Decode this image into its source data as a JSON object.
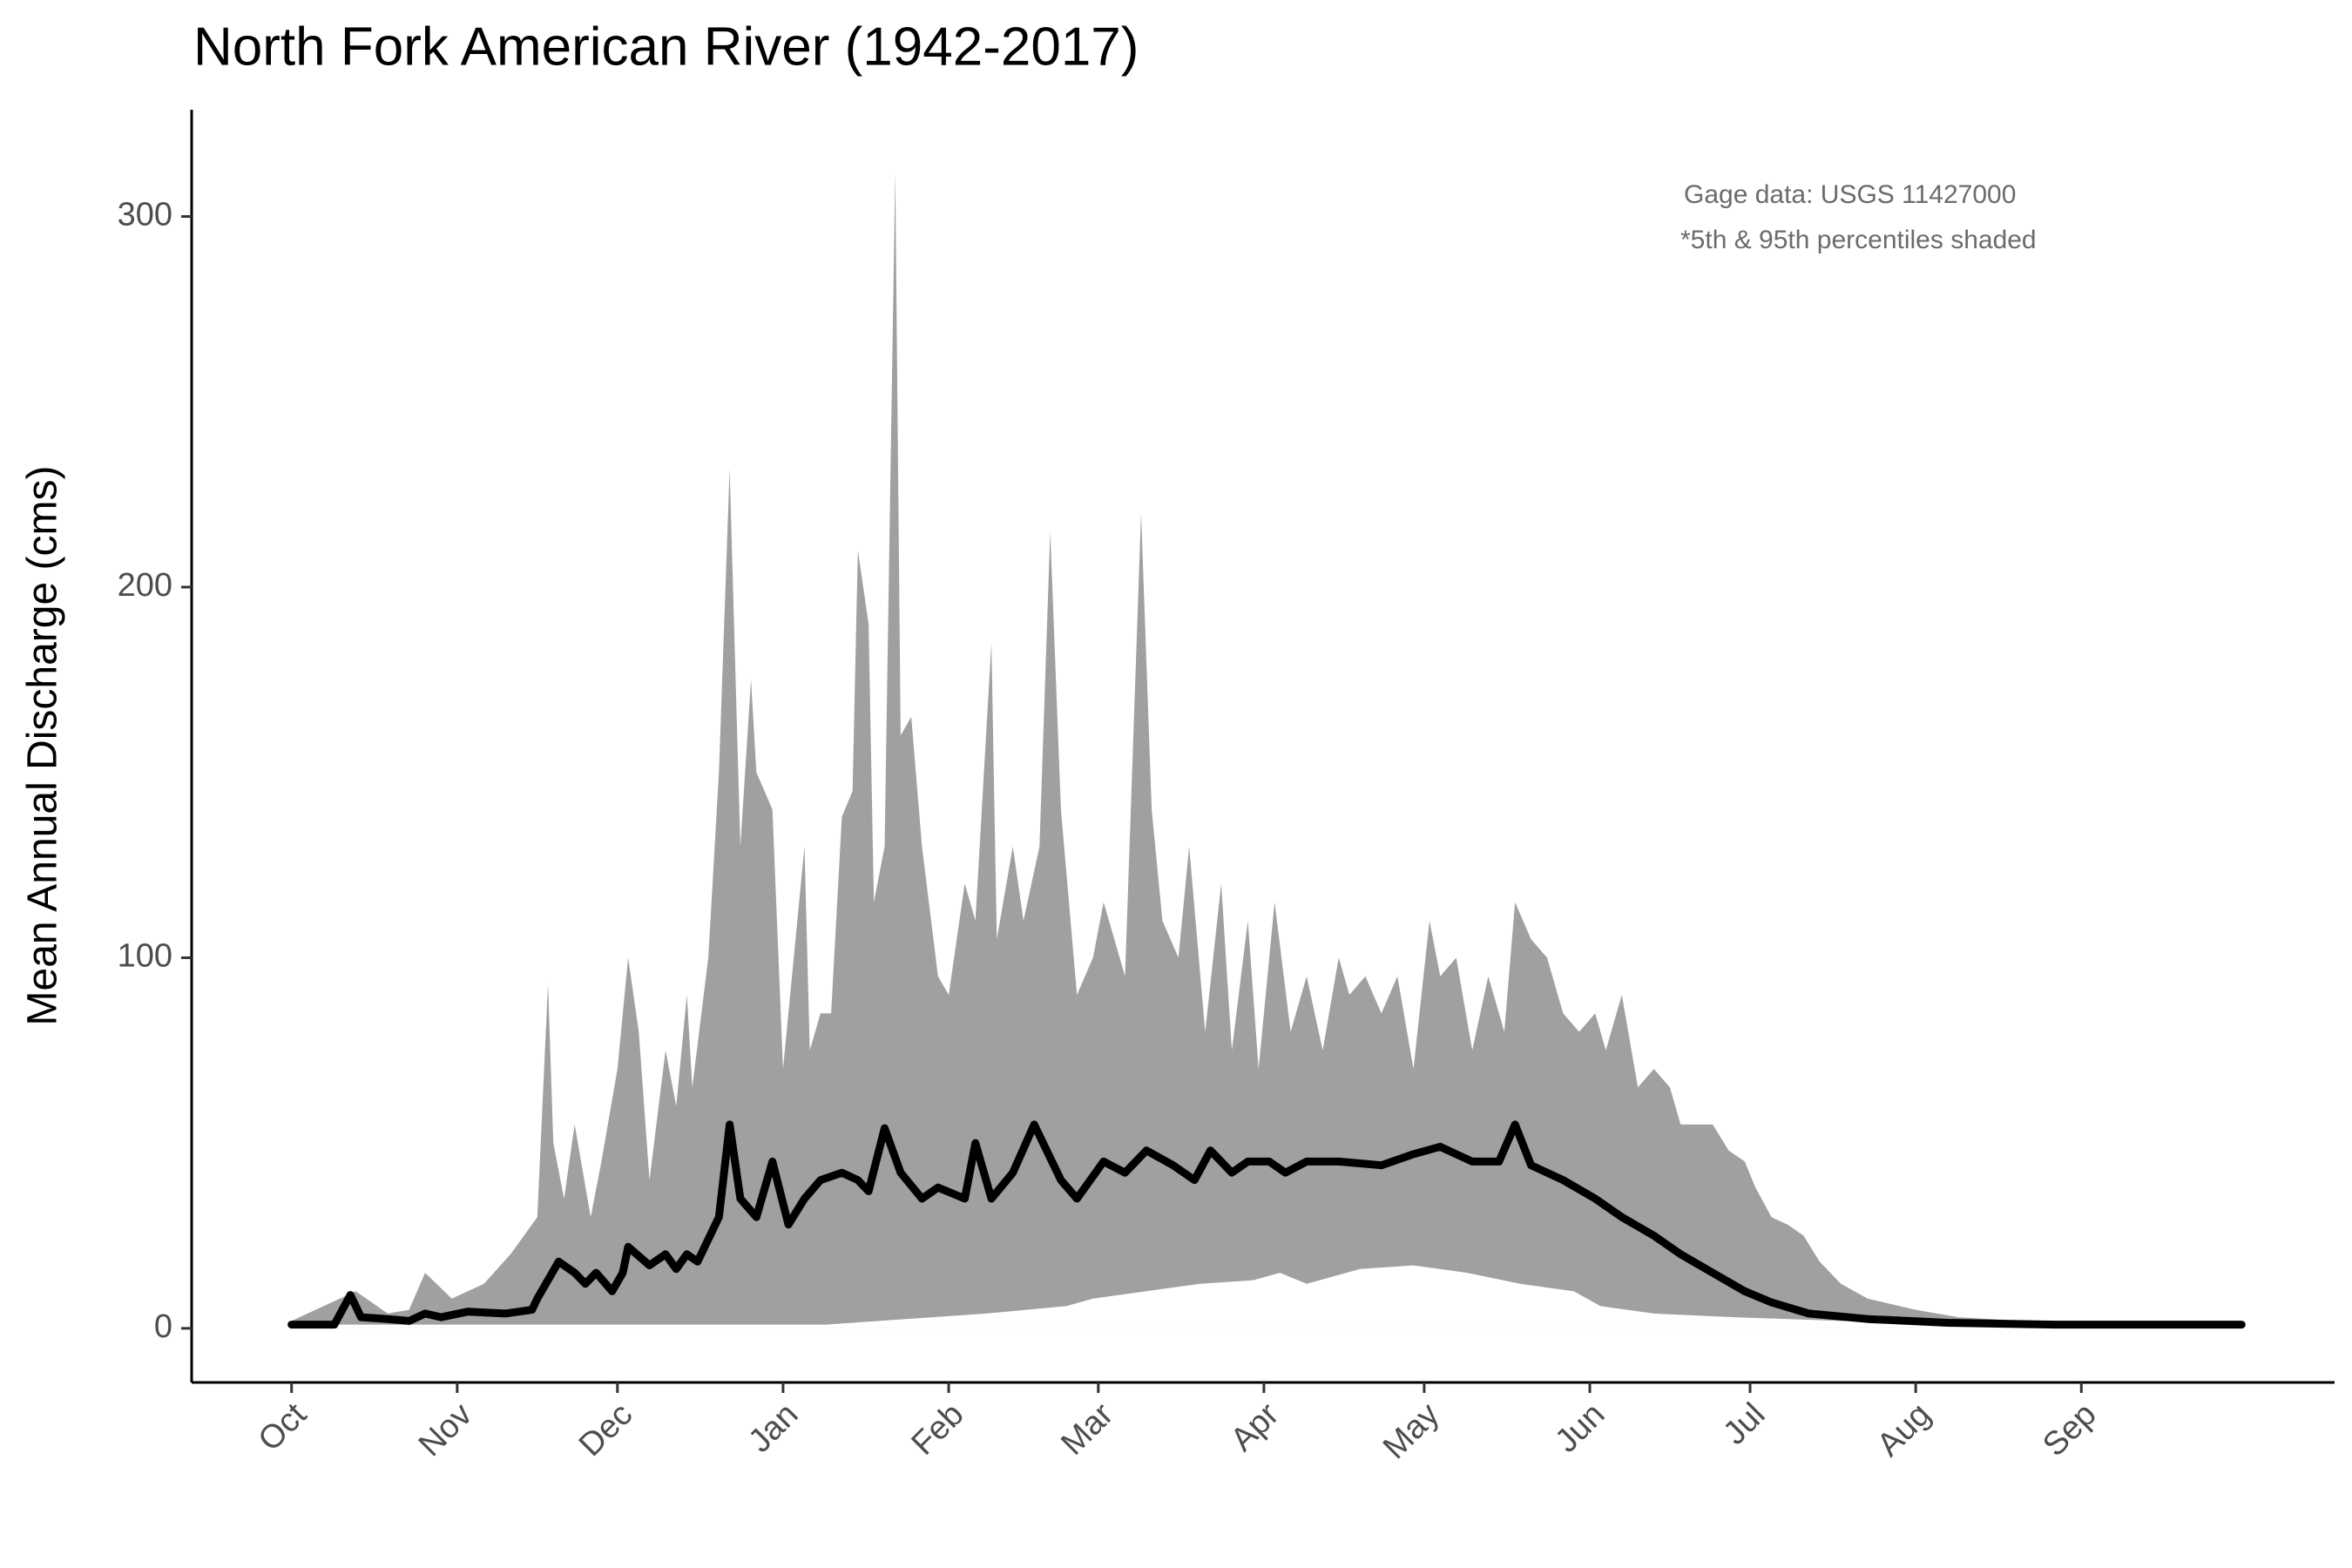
{
  "chart_data": {
    "type": "area-line",
    "title": "North Fork American River (1942-2017)",
    "y_label": "Mean Annual Discharge (cms)",
    "annotations": [
      "Gage data: USGS 11427000",
      "*5th & 95th percentiles shaded"
    ],
    "xlim": [
      -18.7,
      382.4
    ],
    "ylim": [
      -14.6,
      328.8
    ],
    "xticks": [
      {
        "value": 0,
        "label": "Oct"
      },
      {
        "value": 31,
        "label": "Nov"
      },
      {
        "value": 61,
        "label": "Dec"
      },
      {
        "value": 92,
        "label": "Jan"
      },
      {
        "value": 123,
        "label": "Feb"
      },
      {
        "value": 151,
        "label": "Mar"
      },
      {
        "value": 182,
        "label": "Apr"
      },
      {
        "value": 212,
        "label": "May"
      },
      {
        "value": 243,
        "label": "Jun"
      },
      {
        "value": 273,
        "label": "Jul"
      },
      {
        "value": 304,
        "label": "Aug"
      },
      {
        "value": 335,
        "label": "Sep"
      }
    ],
    "yticks": [
      0,
      100,
      200,
      300
    ],
    "series": [
      {
        "color": "#a0a0a0",
        "fill": true,
        "x": [
          0,
          12,
          18,
          22,
          25,
          30,
          36,
          41,
          46,
          48,
          49,
          51,
          53,
          56,
          58,
          61,
          63,
          65,
          67,
          70,
          72,
          74,
          75,
          78,
          80,
          82,
          84,
          86,
          87,
          90,
          92,
          94,
          96,
          97,
          99,
          101,
          103,
          105,
          106,
          108,
          109,
          111,
          113,
          114,
          116,
          118,
          121,
          123,
          126,
          128,
          131,
          132,
          135,
          137,
          140,
          142,
          144,
          147,
          150,
          152,
          156,
          159,
          161,
          163,
          166,
          168,
          171,
          174,
          176,
          179,
          181,
          184,
          187,
          190,
          193,
          196,
          198,
          201,
          204,
          207,
          210,
          213,
          215,
          218,
          221,
          224,
          227,
          229,
          232,
          235,
          238,
          241,
          244,
          246,
          249,
          252,
          255,
          258,
          260,
          263,
          266,
          269,
          272,
          274,
          277,
          280,
          283,
          286,
          290,
          295,
          304,
          312,
          324,
          341,
          365
        ],
        "values": [
          2,
          10,
          4,
          5,
          15,
          8,
          12,
          20,
          30,
          93,
          50,
          35,
          55,
          30,
          45,
          70,
          100,
          80,
          40,
          75,
          60,
          90,
          65,
          100,
          150,
          232,
          130,
          175,
          150,
          140,
          70,
          100,
          130,
          75,
          85,
          85,
          138,
          145,
          210,
          190,
          115,
          130,
          312,
          160,
          165,
          130,
          95,
          90,
          120,
          110,
          185,
          105,
          130,
          110,
          130,
          215,
          140,
          90,
          100,
          115,
          95,
          220,
          140,
          110,
          100,
          130,
          80,
          120,
          75,
          110,
          70,
          115,
          80,
          95,
          75,
          100,
          90,
          95,
          85,
          95,
          70,
          110,
          95,
          100,
          75,
          95,
          80,
          115,
          105,
          100,
          85,
          80,
          85,
          75,
          90,
          65,
          70,
          65,
          55,
          55,
          55,
          48,
          45,
          38,
          30,
          28,
          25,
          18,
          12,
          8,
          5,
          3,
          2,
          1.5,
          1.5
        ]
      },
      {
        "color": "#ffffff",
        "fill": true,
        "x": [
          0,
          100,
          110,
          120,
          130,
          145,
          150,
          160,
          170,
          180,
          185,
          190,
          200,
          210,
          220,
          230,
          240,
          245,
          255,
          270,
          290,
          320,
          365
        ],
        "values": [
          1,
          1,
          2,
          3,
          4,
          6,
          8,
          10,
          12,
          13,
          15,
          12,
          16,
          17,
          15,
          12,
          10,
          6,
          4,
          3,
          2,
          1,
          0.8
        ]
      },
      {
        "color": "#000000",
        "fill": false,
        "x": [
          0,
          8,
          11,
          13,
          18,
          22,
          25,
          28,
          33,
          40,
          45,
          46,
          50,
          53,
          55,
          57,
          60,
          62,
          63,
          67,
          70,
          72,
          74,
          76,
          80,
          82,
          84,
          87,
          90,
          93,
          96,
          99,
          103,
          106,
          108,
          111,
          114,
          118,
          121,
          126,
          128,
          131,
          135,
          139,
          144,
          147,
          152,
          156,
          160,
          165,
          169,
          172,
          176,
          179,
          183,
          186,
          190,
          196,
          204,
          210,
          215,
          221,
          226,
          229,
          232,
          238,
          244,
          249,
          255,
          260,
          266,
          272,
          277,
          284,
          295,
          310,
          330,
          365
        ],
        "values": [
          1,
          1,
          9,
          3,
          2.5,
          2,
          4,
          3,
          4.5,
          4,
          5,
          8,
          18,
          15,
          12,
          15,
          10,
          15,
          22,
          17,
          20,
          16,
          20,
          18,
          30,
          55,
          35,
          30,
          45,
          28,
          35,
          40,
          42,
          40,
          37,
          54,
          42,
          35,
          38,
          35,
          50,
          35,
          42,
          55,
          40,
          35,
          45,
          42,
          48,
          44,
          40,
          48,
          42,
          45,
          45,
          42,
          45,
          45,
          44,
          47,
          49,
          45,
          45,
          55,
          44,
          40,
          35,
          30,
          25,
          20,
          15,
          10,
          7,
          4,
          2.5,
          1.5,
          1,
          1
        ]
      }
    ]
  }
}
